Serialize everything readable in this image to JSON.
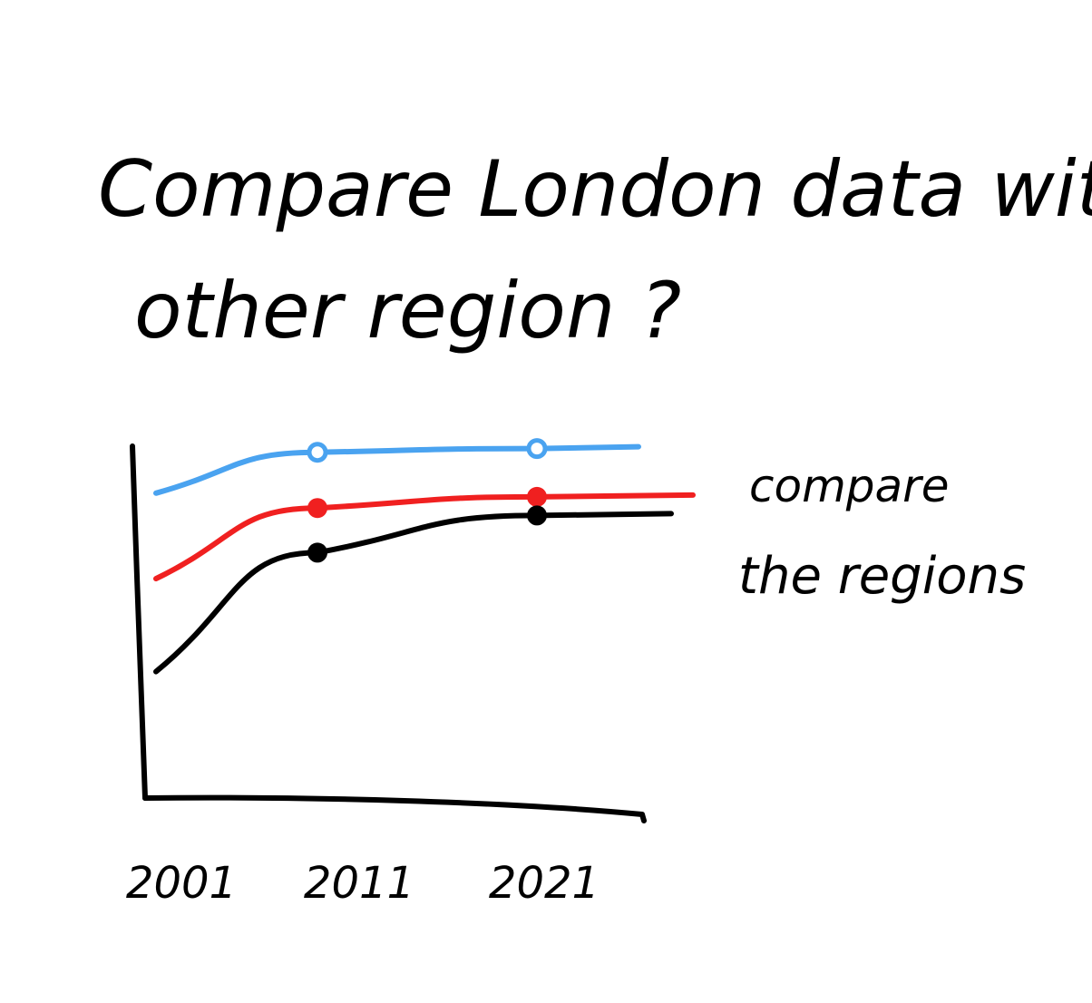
{
  "chart_data": {
    "type": "line",
    "title": "Compare London data with other region ?",
    "annotation": "compare the regions",
    "x": [
      "2001",
      "2011",
      "2021"
    ],
    "ylim": [
      0,
      10
    ],
    "grid": false,
    "series": [
      {
        "color": "#4aa3f0",
        "marker": "open-circle",
        "values": [
          8.2,
          9.3,
          9.4
        ]
      },
      {
        "color": "#f02020",
        "marker": "filled-dot",
        "values": [
          5.9,
          7.8,
          8.1
        ]
      },
      {
        "color": "#000000",
        "marker": "filled-dot",
        "values": [
          3.4,
          6.6,
          7.6
        ]
      }
    ]
  }
}
